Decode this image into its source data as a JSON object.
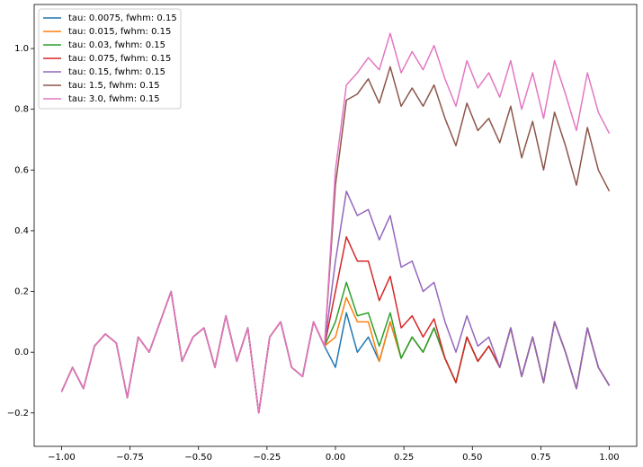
{
  "chart_data": {
    "type": "line",
    "x": [
      -1,
      -0.96,
      -0.92,
      -0.88,
      -0.84,
      -0.8,
      -0.76,
      -0.72,
      -0.68,
      -0.64,
      -0.6,
      -0.56,
      -0.52,
      -0.48,
      -0.44,
      -0.4,
      -0.36,
      -0.32,
      -0.28,
      -0.24,
      -0.2,
      -0.16,
      -0.12,
      -0.08,
      -0.04,
      0,
      0.04,
      0.08,
      0.12,
      0.16,
      0.2,
      0.24,
      0.28,
      0.32,
      0.36,
      0.4,
      0.44,
      0.48,
      0.52,
      0.56,
      0.6,
      0.64,
      0.68,
      0.72,
      0.76,
      0.8,
      0.84,
      0.88,
      0.92,
      0.96,
      1
    ],
    "series": [
      {
        "name": "tau: 0.0075, fwhm: 0.15",
        "color": "#1f77b4",
        "values": [
          -0.13,
          -0.05,
          -0.12,
          0.02,
          0.06,
          0.03,
          -0.15,
          0.05,
          0.0,
          0.1,
          0.2,
          -0.03,
          0.05,
          0.08,
          -0.05,
          0.12,
          -0.03,
          0.08,
          -0.2,
          0.05,
          0.1,
          -0.05,
          -0.08,
          0.1,
          0.02,
          -0.05,
          0.13,
          0.0,
          0.05,
          -0.03,
          0.1,
          -0.02,
          0.05,
          0.0,
          0.08,
          -0.02,
          -0.1,
          0.05,
          -0.03,
          0.02,
          -0.05,
          0.08,
          -0.08,
          0.05,
          -0.1,
          0.1,
          0.0,
          -0.12,
          0.08,
          -0.05,
          -0.11
        ]
      },
      {
        "name": "tau: 0.015, fwhm: 0.15",
        "color": "#ff7f0e",
        "values": [
          -0.13,
          -0.05,
          -0.12,
          0.02,
          0.06,
          0.03,
          -0.15,
          0.05,
          0.0,
          0.1,
          0.2,
          -0.03,
          0.05,
          0.08,
          -0.05,
          0.12,
          -0.03,
          0.08,
          -0.2,
          0.05,
          0.1,
          -0.05,
          -0.08,
          0.1,
          0.02,
          0.05,
          0.18,
          0.1,
          0.1,
          -0.03,
          0.1,
          -0.02,
          0.05,
          0.0,
          0.08,
          -0.02,
          -0.1,
          0.05,
          -0.03,
          0.02,
          -0.05,
          0.08,
          -0.08,
          0.05,
          -0.1,
          0.1,
          0.0,
          -0.12,
          0.08,
          -0.05,
          -0.11
        ]
      },
      {
        "name": "tau: 0.03, fwhm: 0.15",
        "color": "#2ca02c",
        "values": [
          -0.13,
          -0.05,
          -0.12,
          0.02,
          0.06,
          0.03,
          -0.15,
          0.05,
          0.0,
          0.1,
          0.2,
          -0.03,
          0.05,
          0.08,
          -0.05,
          0.12,
          -0.03,
          0.08,
          -0.2,
          0.05,
          0.1,
          -0.05,
          -0.08,
          0.1,
          0.02,
          0.1,
          0.23,
          0.12,
          0.13,
          0.02,
          0.13,
          -0.02,
          0.05,
          0.0,
          0.08,
          -0.02,
          -0.1,
          0.05,
          -0.03,
          0.02,
          -0.05,
          0.08,
          -0.08,
          0.05,
          -0.1,
          0.1,
          0.0,
          -0.12,
          0.08,
          -0.05,
          -0.11
        ]
      },
      {
        "name": "tau: 0.075, fwhm: 0.15",
        "color": "#d62728",
        "values": [
          -0.13,
          -0.05,
          -0.12,
          0.02,
          0.06,
          0.03,
          -0.15,
          0.05,
          0.0,
          0.1,
          0.2,
          -0.03,
          0.05,
          0.08,
          -0.05,
          0.12,
          -0.03,
          0.08,
          -0.2,
          0.05,
          0.1,
          -0.05,
          -0.08,
          0.1,
          0.02,
          0.2,
          0.38,
          0.3,
          0.3,
          0.17,
          0.25,
          0.08,
          0.12,
          0.05,
          0.11,
          -0.02,
          -0.1,
          0.05,
          -0.03,
          0.02,
          -0.05,
          0.08,
          -0.08,
          0.05,
          -0.1,
          0.1,
          0.0,
          -0.12,
          0.08,
          -0.05,
          -0.11
        ]
      },
      {
        "name": "tau: 0.15, fwhm: 0.15",
        "color": "#9467bd",
        "values": [
          -0.13,
          -0.05,
          -0.12,
          0.02,
          0.06,
          0.03,
          -0.15,
          0.05,
          0.0,
          0.1,
          0.2,
          -0.03,
          0.05,
          0.08,
          -0.05,
          0.12,
          -0.03,
          0.08,
          -0.2,
          0.05,
          0.1,
          -0.05,
          -0.08,
          0.1,
          0.02,
          0.3,
          0.53,
          0.45,
          0.47,
          0.37,
          0.45,
          0.28,
          0.3,
          0.2,
          0.23,
          0.1,
          0.0,
          0.12,
          0.02,
          0.05,
          -0.05,
          0.08,
          -0.08,
          0.05,
          -0.1,
          0.1,
          0.0,
          -0.12,
          0.08,
          -0.05,
          -0.11
        ]
      },
      {
        "name": "tau: 1.5, fwhm: 0.15",
        "color": "#8c564b",
        "values": [
          -0.13,
          -0.05,
          -0.12,
          0.02,
          0.06,
          0.03,
          -0.15,
          0.05,
          0.0,
          0.1,
          0.2,
          -0.03,
          0.05,
          0.08,
          -0.05,
          0.12,
          -0.03,
          0.08,
          -0.2,
          0.05,
          0.1,
          -0.05,
          -0.08,
          0.1,
          0.02,
          0.55,
          0.83,
          0.85,
          0.9,
          0.82,
          0.94,
          0.81,
          0.87,
          0.81,
          0.88,
          0.77,
          0.68,
          0.82,
          0.73,
          0.77,
          0.69,
          0.81,
          0.64,
          0.76,
          0.6,
          0.79,
          0.68,
          0.55,
          0.74,
          0.6,
          0.53
        ]
      },
      {
        "name": "tau: 3.0, fwhm: 0.15",
        "color": "#e377c2",
        "values": [
          -0.13,
          -0.05,
          -0.12,
          0.02,
          0.06,
          0.03,
          -0.15,
          0.05,
          0.0,
          0.1,
          0.2,
          -0.03,
          0.05,
          0.08,
          -0.05,
          0.12,
          -0.03,
          0.08,
          -0.2,
          0.05,
          0.1,
          -0.05,
          -0.08,
          0.1,
          0.02,
          0.6,
          0.88,
          0.92,
          0.97,
          0.93,
          1.05,
          0.92,
          0.99,
          0.93,
          1.01,
          0.9,
          0.81,
          0.96,
          0.87,
          0.92,
          0.84,
          0.96,
          0.8,
          0.92,
          0.77,
          0.96,
          0.85,
          0.73,
          0.92,
          0.79,
          0.72
        ]
      }
    ],
    "xlim": [
      -1.1,
      1.1
    ],
    "ylim": [
      -0.31,
      1.145
    ],
    "xticks": [
      {
        "value": -1,
        "label": "−1.00"
      },
      {
        "value": -0.75,
        "label": "−0.75"
      },
      {
        "value": -0.5,
        "label": "−0.50"
      },
      {
        "value": -0.25,
        "label": "−0.25"
      },
      {
        "value": 0,
        "label": "0.00"
      },
      {
        "value": 0.25,
        "label": "0.25"
      },
      {
        "value": 0.5,
        "label": "0.50"
      },
      {
        "value": 0.75,
        "label": "0.75"
      },
      {
        "value": 1,
        "label": "1.00"
      }
    ],
    "yticks": [
      {
        "value": -0.2,
        "label": "−0.2"
      },
      {
        "value": 0,
        "label": "0.0"
      },
      0.2,
      0.4,
      0.6,
      0.8,
      {
        "value": 1,
        "label": "1.0"
      }
    ],
    "legend": "upper left"
  }
}
